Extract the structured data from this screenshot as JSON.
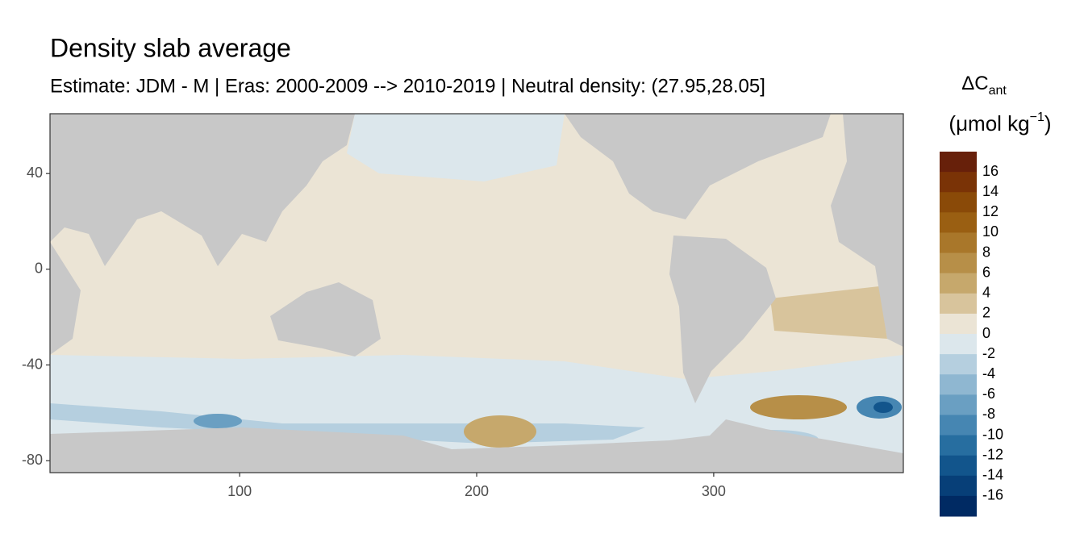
{
  "chart_data": {
    "type": "map",
    "title": "Density slab average",
    "subtitle": "Estimate: JDM - M | Eras: 2000-2009 --> 2010-2019 | Neutral density: (27.95,28.05]",
    "xlim": [
      20,
      380
    ],
    "ylim": [
      -85,
      65
    ],
    "xticks": [
      100,
      200,
      300
    ],
    "yticks": [
      40,
      0,
      -40,
      -80
    ],
    "legend": {
      "title": "ΔC",
      "title_sub": "ant",
      "unit": "(μmol kg",
      "unit_sup": "−1",
      "unit_close": ")",
      "labels": [
        16,
        14,
        12,
        10,
        8,
        6,
        4,
        2,
        0,
        -2,
        -4,
        -6,
        -8,
        -10,
        -12,
        -14,
        -16
      ],
      "colors": [
        "#67200a",
        "#7a3306",
        "#8a4a08",
        "#9a5f12",
        "#a9772a",
        "#b78f48",
        "#c6a86c",
        "#d8c49c",
        "#ebe4d5",
        "#dce7ec",
        "#b5cfdf",
        "#8fb7d1",
        "#6a9fc2",
        "#4686b2",
        "#276ea0",
        "#12558c",
        "#073f78",
        "#002a63"
      ]
    }
  }
}
